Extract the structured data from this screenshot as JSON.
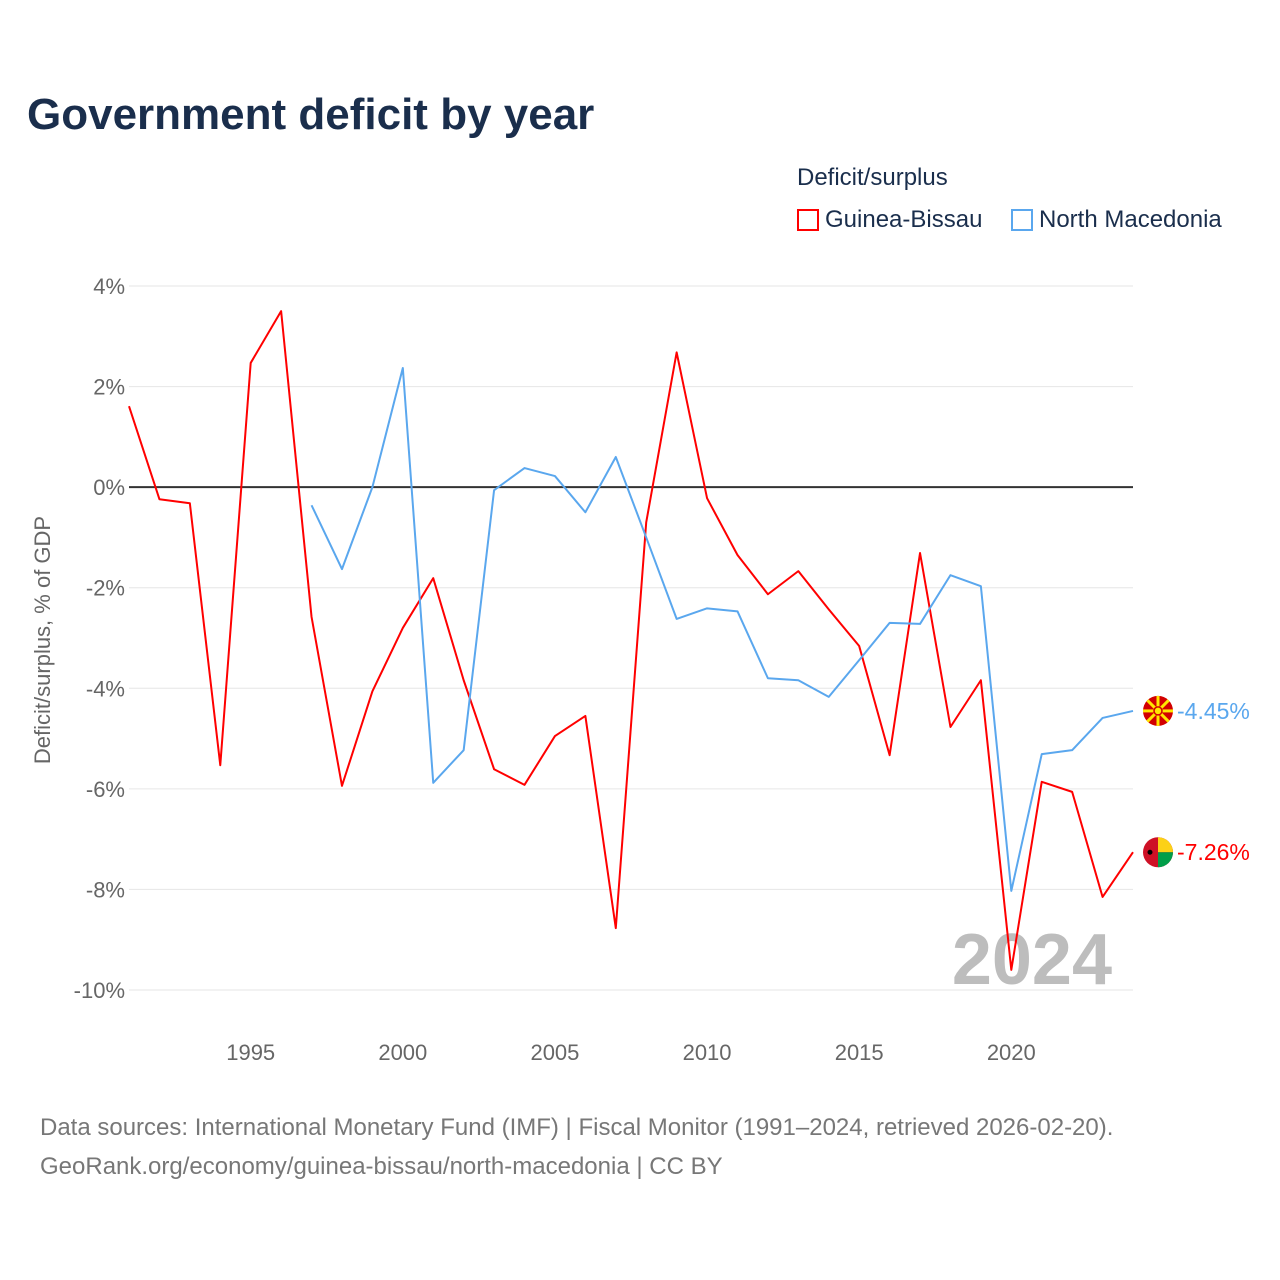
{
  "chart_data": {
    "type": "line",
    "title": "Government deficit by year",
    "ylabel": "Deficit/surplus, % of GDP",
    "xlabel": "",
    "ylim": [
      -10,
      4
    ],
    "xlim": [
      1991,
      2024
    ],
    "yticks": [
      4,
      2,
      0,
      -2,
      -4,
      -6,
      -8,
      -10
    ],
    "ytick_labels": [
      "4%",
      "2%",
      "0%",
      "-2%",
      "-4%",
      "-6%",
      "-8%",
      "-10%"
    ],
    "xticks": [
      1995,
      2000,
      2005,
      2010,
      2015,
      2020
    ],
    "xtick_labels": [
      "1995",
      "2000",
      "2005",
      "2010",
      "2015",
      "2020"
    ],
    "legend_title": "Deficit/surplus",
    "legend_placement": "top-right",
    "year_watermark": "2024",
    "series": [
      {
        "name": "Guinea-Bissau",
        "color": "#ff0000",
        "end_label": "-7.26%",
        "x": [
          1991,
          1992,
          1993,
          1994,
          1995,
          1996,
          1997,
          1998,
          1999,
          2000,
          2001,
          2002,
          2003,
          2004,
          2005,
          2006,
          2007,
          2008,
          2009,
          2010,
          2011,
          2012,
          2013,
          2014,
          2015,
          2016,
          2017,
          2018,
          2019,
          2020,
          2021,
          2022,
          2023,
          2024
        ],
        "values": [
          1.61,
          -0.24,
          -0.32,
          -5.53,
          2.47,
          3.5,
          -2.58,
          -5.94,
          -4.06,
          -2.8,
          -1.81,
          -3.84,
          -5.61,
          -5.92,
          -4.95,
          -4.55,
          -8.77,
          -0.7,
          2.68,
          -0.22,
          -1.35,
          -2.13,
          -1.67,
          -2.43,
          -3.16,
          -5.33,
          -1.31,
          -4.77,
          -3.84,
          -9.6,
          -5.86,
          -6.06,
          -8.15,
          -7.26
        ]
      },
      {
        "name": "North Macedonia",
        "color": "#5aa7ee",
        "end_label": "-4.45%",
        "x": [
          1997,
          1998,
          1999,
          2000,
          2001,
          2002,
          2003,
          2004,
          2005,
          2006,
          2007,
          2008,
          2009,
          2010,
          2011,
          2012,
          2013,
          2014,
          2015,
          2016,
          2017,
          2018,
          2019,
          2020,
          2021,
          2022,
          2023,
          2024
        ],
        "values": [
          -0.36,
          -1.63,
          0.0,
          2.37,
          -5.88,
          -5.23,
          -0.06,
          0.38,
          0.22,
          -0.5,
          0.6,
          -1.0,
          -2.62,
          -2.41,
          -2.47,
          -3.8,
          -3.84,
          -4.17,
          -3.44,
          -2.7,
          -2.72,
          -1.75,
          -1.97,
          -8.03,
          -5.31,
          -5.23,
          -4.59,
          -4.45
        ]
      }
    ]
  },
  "source": {
    "line1": "Data sources: International Monetary Fund (IMF) | Fiscal Monitor (1991–2024, retrieved 2026-02-20).",
    "line2": "GeoRank.org/economy/guinea-bissau/north-macedonia | CC BY"
  }
}
